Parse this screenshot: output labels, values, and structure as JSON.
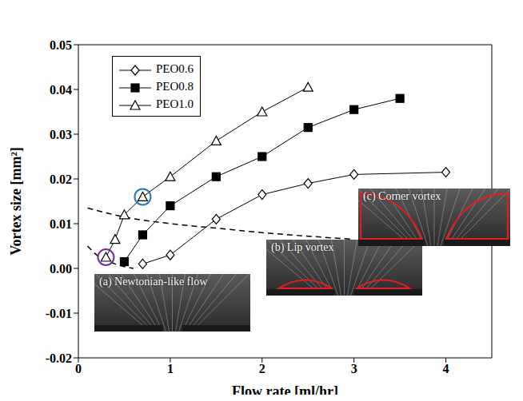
{
  "chart_data": {
    "type": "line",
    "x_label": "Flow rate [ml/hr]",
    "y_label": "Vortex size [mm²]",
    "xlim": [
      0,
      4.5
    ],
    "xticks": [
      0,
      1,
      2,
      3,
      4
    ],
    "ylim": [
      -0.02,
      0.05
    ],
    "yticks": [
      -0.02,
      -0.01,
      {
        "value": 0,
        "label": "0.00"
      },
      0.01,
      0.02,
      0.03,
      0.04,
      0.05
    ],
    "legend": "upper left",
    "series": [
      {
        "name": "PEO0.6",
        "color": "#000000",
        "marker": "diamond_open",
        "x": [
          0.7,
          1.0,
          1.5,
          2.0,
          2.5,
          3.0,
          4.0
        ],
        "values": [
          0.001,
          0.003,
          0.011,
          0.0165,
          0.019,
          0.021,
          0.0215
        ]
      },
      {
        "name": "PEO0.8",
        "color": "#000000",
        "marker": "square",
        "x": [
          0.5,
          0.7,
          1.0,
          1.5,
          2.0,
          2.5,
          3.0,
          3.5
        ],
        "values": [
          0.0015,
          0.0075,
          0.014,
          0.0205,
          0.025,
          0.0315,
          0.0355,
          0.038
        ]
      },
      {
        "name": "PEO1.0",
        "color": "#000000",
        "marker": "triangle_open",
        "x": [
          0.3,
          0.4,
          0.5,
          0.7,
          1.0,
          1.5,
          2.0,
          2.5
        ],
        "values": [
          0.0025,
          0.0065,
          0.012,
          0.016,
          0.0205,
          0.0285,
          0.035,
          0.0405
        ]
      }
    ],
    "boundaries": [
      {
        "x": [
          0.1,
          0.5,
          1.0,
          1.5,
          2.0,
          2.5,
          3.0
        ],
        "values": [
          0.0135,
          0.0115,
          0.01,
          0.009,
          0.008,
          0.0072,
          0.0065
        ],
        "line_style": "dashed",
        "color": "#000000"
      },
      {
        "x": [
          0.1,
          0.2,
          0.3,
          0.4,
          0.5,
          0.6
        ],
        "values": [
          0.005,
          0.003,
          0.0018,
          0.001,
          0.0004,
          0.0
        ],
        "line_style": "dashed",
        "color": "#000000"
      }
    ],
    "highlights": [
      {
        "x": 0.3,
        "y": 0.0025,
        "color": "#7030a0"
      },
      {
        "x": 0.7,
        "y": 0.016,
        "color": "#2e75b6"
      }
    ],
    "annotations": [
      "(a) Newtonian-like flow",
      "(b) Lip vortex",
      "(c) Corner vortex"
    ]
  }
}
